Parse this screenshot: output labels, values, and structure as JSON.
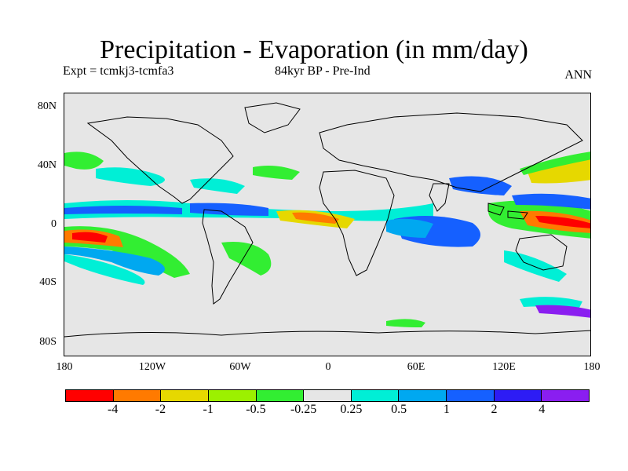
{
  "title": "Precipitation - Evaporation (in mm/day)",
  "subtitle_left": "Expt = tcmkj3-tcmfa3",
  "subtitle_mid": "84kyr BP - Pre-Ind",
  "subtitle_right": "ANN",
  "y_axis_labels": [
    "80N",
    "40N",
    "0",
    "40S",
    "80S"
  ],
  "x_axis_labels": [
    "180",
    "120W",
    "60W",
    "0",
    "60E",
    "120E",
    "180"
  ],
  "colorbar": {
    "colors": [
      "#ff0000",
      "#ff7a00",
      "#e6d800",
      "#9cf000",
      "#32ee32",
      "#e6e6e6",
      "#00efd6",
      "#00a8f0",
      "#1560ff",
      "#2d1cf5",
      "#8a1ef0"
    ],
    "labels": [
      "-4",
      "-2",
      "-1",
      "-0.5",
      "-0.25",
      "0.25",
      "0.5",
      "1",
      "2",
      "4"
    ]
  }
}
